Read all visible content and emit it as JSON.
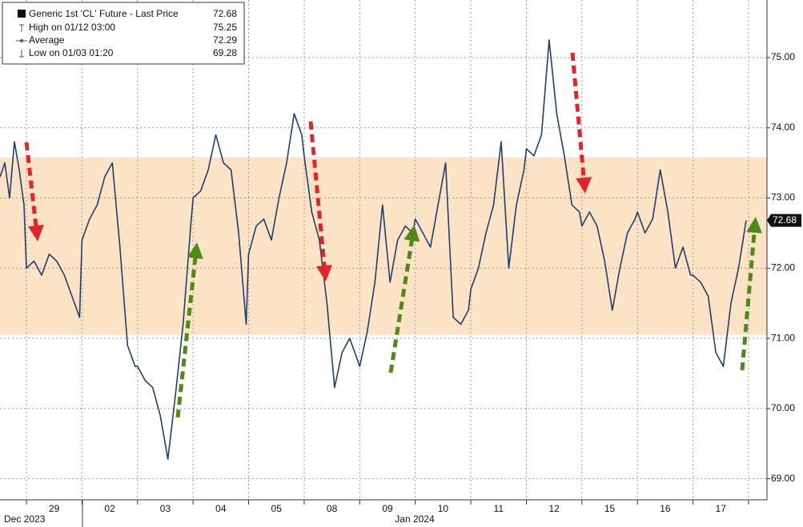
{
  "chart_data": {
    "type": "line",
    "categories": [
      null,
      "29",
      "02",
      "03",
      "04",
      "05",
      "08",
      "09",
      "10",
      "11",
      "12",
      "15",
      "16",
      "17"
    ],
    "x_periods": [
      "Dec 2023",
      "Jan 2024"
    ],
    "series": [
      {
        "name": "Generic 1st 'CL' Future - Last Price",
        "color": "#1f3f6e",
        "values": [
          [
            73.3,
            73.5,
            73.0,
            73.8,
            73.4,
            72.9
          ],
          [
            72.0,
            72.1,
            71.9,
            72.2,
            72.1,
            71.9,
            71.6,
            71.3
          ],
          [
            72.4,
            72.7,
            72.9,
            73.3,
            73.5,
            72.3,
            70.9,
            70.6
          ],
          [
            70.6,
            70.4,
            70.3,
            69.9,
            69.28,
            70.2,
            71.2,
            72.6
          ],
          [
            73.0,
            73.1,
            73.4,
            73.9,
            73.5,
            73.4,
            72.5,
            71.2
          ],
          [
            72.2,
            72.6,
            72.7,
            72.4,
            73.0,
            73.5,
            74.2,
            73.9
          ],
          [
            73.6,
            72.8,
            72.4,
            71.5,
            70.3,
            70.8,
            71.0,
            70.7
          ],
          [
            70.6,
            71.1,
            71.8,
            72.9,
            71.8,
            72.4,
            72.6,
            72.5
          ],
          [
            72.7,
            72.5,
            72.3,
            72.9,
            73.5,
            71.3,
            71.2,
            71.4
          ],
          [
            71.7,
            72.0,
            72.5,
            72.9,
            73.8,
            72.0,
            72.9,
            73.4
          ],
          [
            73.7,
            73.6,
            73.9,
            75.25,
            74.2,
            73.6,
            72.9,
            72.8
          ],
          [
            72.6,
            72.8,
            72.6,
            72.1,
            71.4,
            72.0,
            72.5,
            72.7
          ],
          [
            72.8,
            72.5,
            72.7,
            73.4,
            72.8,
            72.0,
            72.3,
            71.9
          ],
          [
            71.9,
            71.8,
            71.6,
            70.8,
            70.6,
            71.5,
            72.0,
            72.68
          ]
        ]
      }
    ],
    "legend_stats": [
      {
        "label": "High on 01/12 03:00",
        "value": 75.25
      },
      {
        "label": "Average",
        "value": 72.29
      },
      {
        "label": "Low on 01/03 01:20",
        "value": 69.28
      }
    ],
    "band": {
      "from": 71.05,
      "to": 73.58,
      "color": "#fde3c6"
    },
    "ylim": [
      68.7,
      75.82
    ],
    "yticks": [
      {
        "value": 69,
        "label": "69.00"
      },
      {
        "value": 70,
        "label": "70.00"
      },
      {
        "value": 71,
        "label": "71.00"
      },
      {
        "value": 72,
        "label": "72.00"
      },
      {
        "value": 73,
        "label": "73.00"
      },
      {
        "value": 74,
        "label": "74.00"
      },
      {
        "value": 75,
        "label": "75.00"
      }
    ],
    "grid": true
  }
}
